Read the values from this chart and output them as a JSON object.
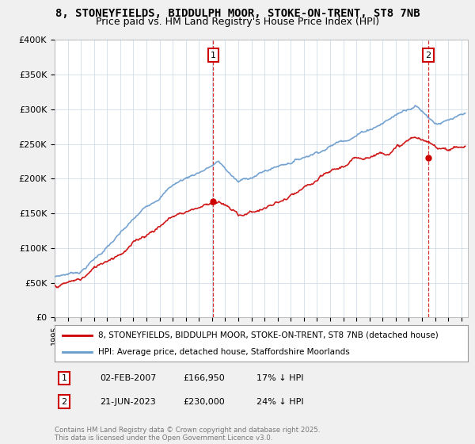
{
  "title": "8, STONEYFIELDS, BIDDULPH MOOR, STOKE-ON-TRENT, ST8 7NB",
  "subtitle": "Price paid vs. HM Land Registry's House Price Index (HPI)",
  "ylim": [
    0,
    400000
  ],
  "xlim_start": 1995.0,
  "xlim_end": 2026.5,
  "yticks": [
    0,
    50000,
    100000,
    150000,
    200000,
    250000,
    300000,
    350000,
    400000
  ],
  "ytick_labels": [
    "£0",
    "£50K",
    "£100K",
    "£150K",
    "£200K",
    "£250K",
    "£300K",
    "£350K",
    "£400K"
  ],
  "background_color": "#f0f0f0",
  "plot_bg_color": "#ffffff",
  "grid_color": "#c8d8e8",
  "red_color": "#cc0000",
  "blue_color": "#6699cc",
  "marker1_x": 2007.09,
  "marker1_y_red": 166950,
  "marker1_label": "1",
  "marker2_x": 2023.47,
  "marker2_y_red": 230000,
  "marker2_label": "2",
  "legend_label_red": "8, STONEYFIELDS, BIDDULPH MOOR, STOKE-ON-TRENT, ST8 7NB (detached house)",
  "legend_label_blue": "HPI: Average price, detached house, Staffordshire Moorlands",
  "ann1_label": "1",
  "ann1_date": "02-FEB-2007",
  "ann1_price": "£166,950",
  "ann1_hpi": "17% ↓ HPI",
  "ann2_label": "2",
  "ann2_date": "21-JUN-2023",
  "ann2_price": "£230,000",
  "ann2_hpi": "24% ↓ HPI",
  "footer": "Contains HM Land Registry data © Crown copyright and database right 2025.\nThis data is licensed under the Open Government Licence v3.0.",
  "title_fontsize": 10,
  "subtitle_fontsize": 9
}
